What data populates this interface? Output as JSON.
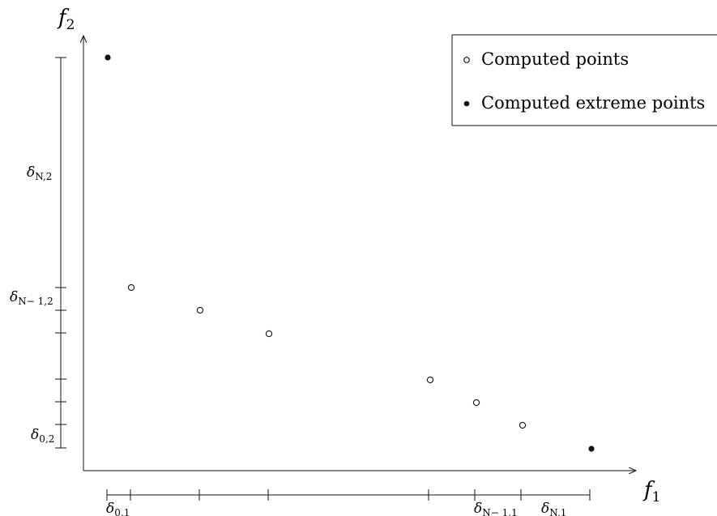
{
  "axes": {
    "x_label": "f",
    "x_sub": "1",
    "y_label": "f",
    "y_sub": "2"
  },
  "legend": {
    "computed": "Computed points",
    "extreme": "Computed extreme points"
  },
  "points": [
    {
      "name": "extreme-point-top",
      "kind": "extreme"
    },
    {
      "name": "computed-point-1",
      "kind": "computed"
    },
    {
      "name": "computed-point-2",
      "kind": "computed"
    },
    {
      "name": "computed-point-3",
      "kind": "computed"
    },
    {
      "name": "computed-point-4",
      "kind": "computed"
    },
    {
      "name": "computed-point-5",
      "kind": "computed"
    },
    {
      "name": "computed-point-6",
      "kind": "computed"
    },
    {
      "name": "extreme-point-bottom",
      "kind": "extreme"
    }
  ],
  "x_intervals": {
    "d0": {
      "delta": "δ",
      "sub": "0,1"
    },
    "dNm1": {
      "delta": "δ",
      "sub": "N− 1,1"
    },
    "dN": {
      "delta": "δ",
      "sub": "N,1"
    }
  },
  "y_intervals": {
    "dN": {
      "delta": "δ",
      "sub": "N,2"
    },
    "dNm1": {
      "delta": "δ",
      "sub": "N− 1,2"
    },
    "d0": {
      "delta": "δ",
      "sub": "0,2"
    }
  }
}
